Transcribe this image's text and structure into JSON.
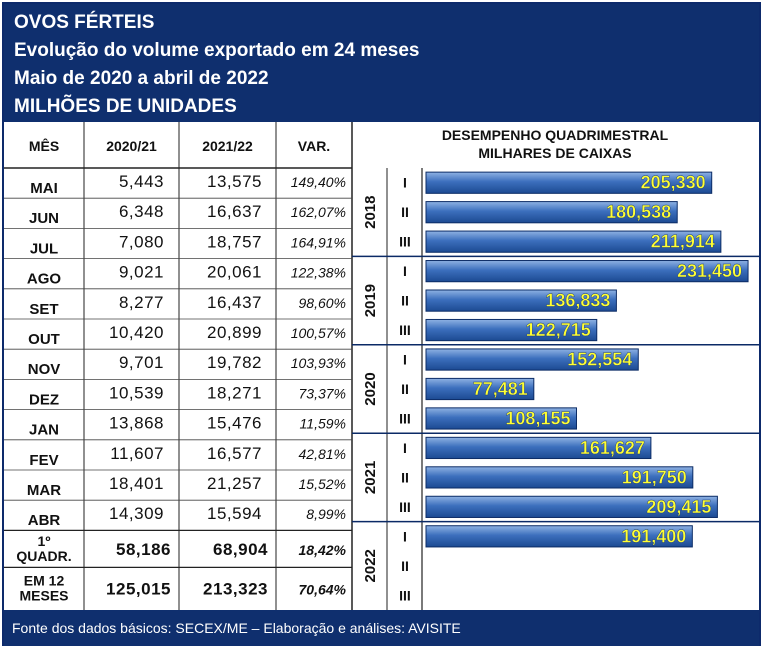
{
  "header": {
    "title": "OVOS FÉRTEIS",
    "subtitle": "Evolução do volume exportado em 24 meses",
    "period": "Maio de 2020 a abril de 2022",
    "unit": "MILHÕES DE UNIDADES"
  },
  "table": {
    "columns": [
      "MÊS",
      "2020/21",
      "2021/22",
      "VAR."
    ],
    "rows": [
      {
        "month": "MAI",
        "v1": "5,443",
        "v2": "13,575",
        "var": "149,40%"
      },
      {
        "month": "JUN",
        "v1": "6,348",
        "v2": "16,637",
        "var": "162,07%"
      },
      {
        "month": "JUL",
        "v1": "7,080",
        "v2": "18,757",
        "var": "164,91%"
      },
      {
        "month": "AGO",
        "v1": "9,021",
        "v2": "20,061",
        "var": "122,38%"
      },
      {
        "month": "SET",
        "v1": "8,277",
        "v2": "16,437",
        "var": "98,60%"
      },
      {
        "month": "OUT",
        "v1": "10,420",
        "v2": "20,899",
        "var": "100,57%"
      },
      {
        "month": "NOV",
        "v1": "9,701",
        "v2": "19,782",
        "var": "103,93%"
      },
      {
        "month": "DEZ",
        "v1": "10,539",
        "v2": "18,271",
        "var": "73,37%"
      },
      {
        "month": "JAN",
        "v1": "13,868",
        "v2": "15,476",
        "var": "11,59%"
      },
      {
        "month": "FEV",
        "v1": "11,607",
        "v2": "16,577",
        "var": "42,81%"
      },
      {
        "month": "MAR",
        "v1": "18,401",
        "v2": "21,257",
        "var": "15,52%"
      },
      {
        "month": "ABR",
        "v1": "14,309",
        "v2": "15,594",
        "var": "8,99%"
      }
    ],
    "summary": [
      {
        "label": [
          "1º",
          "QUADR."
        ],
        "v1": "58,186",
        "v2": "68,904",
        "var": "18,42%"
      },
      {
        "label": [
          "EM 12",
          "MESES"
        ],
        "v1": "125,015",
        "v2": "213,323",
        "var": "70,64%"
      }
    ]
  },
  "chart_data": {
    "type": "bar",
    "orientation": "horizontal",
    "title": "DESEMPENHO QUADRIMESTRAL",
    "subtitle": "MILHARES DE CAIXAS",
    "groups": [
      {
        "year": "2018",
        "bars": [
          {
            "q": "I",
            "value": 205.33,
            "label": "205,330"
          },
          {
            "q": "II",
            "value": 180.538,
            "label": "180,538"
          },
          {
            "q": "III",
            "value": 211.914,
            "label": "211,914"
          }
        ]
      },
      {
        "year": "2019",
        "bars": [
          {
            "q": "I",
            "value": 231.45,
            "label": "231,450"
          },
          {
            "q": "II",
            "value": 136.833,
            "label": "136,833"
          },
          {
            "q": "III",
            "value": 122.715,
            "label": "122,715"
          }
        ]
      },
      {
        "year": "2020",
        "bars": [
          {
            "q": "I",
            "value": 152.554,
            "label": "152,554"
          },
          {
            "q": "II",
            "value": 77.481,
            "label": "77,481"
          },
          {
            "q": "III",
            "value": 108.155,
            "label": "108,155"
          }
        ]
      },
      {
        "year": "2021",
        "bars": [
          {
            "q": "I",
            "value": 161.627,
            "label": "161,627"
          },
          {
            "q": "II",
            "value": 191.75,
            "label": "191,750"
          },
          {
            "q": "III",
            "value": 209.415,
            "label": "209,415"
          }
        ]
      },
      {
        "year": "2022",
        "bars": [
          {
            "q": "I",
            "value": 191.4,
            "label": "191,400"
          },
          {
            "q": "II",
            "value": null,
            "label": ""
          },
          {
            "q": "III",
            "value": null,
            "label": ""
          }
        ]
      }
    ],
    "xlim": [
      0,
      235
    ]
  },
  "footer": {
    "source": "Fonte dos dados básicos: SECEX/ME – Elaboração e análises: AVISITE"
  },
  "colors": {
    "navy": "#0f2f6e",
    "bar": "#2a5ca8",
    "bar_light": "#8fb2e3",
    "label": "#ffff33"
  }
}
